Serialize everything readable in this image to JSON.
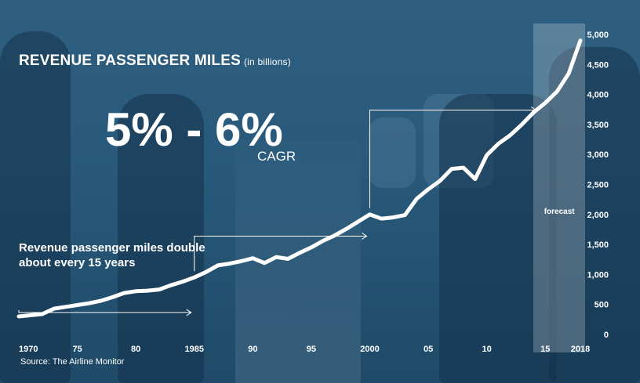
{
  "title": "REVENUE PASSENGER MILES",
  "title_unit": "(in billions)",
  "cagr": {
    "value": "5% - 6%",
    "label": "CAGR"
  },
  "annotation": "Revenue passenger miles double about every 15 years",
  "source": "Source: The Airline Monitor",
  "forecast_label": "forecast",
  "colors": {
    "line": "#ffffff",
    "background": "#2b5a7a",
    "forecast_band": "rgba(255,255,255,0.22)"
  },
  "chart_data": {
    "type": "line",
    "title": "REVENUE PASSENGER MILES (in billions)",
    "x_range": [
      1970,
      2018
    ],
    "y_range": [
      0,
      5000
    ],
    "x_ticks": [
      {
        "value": 1970,
        "label": "1970"
      },
      {
        "value": 1975,
        "label": "75"
      },
      {
        "value": 1980,
        "label": "80"
      },
      {
        "value": 1985,
        "label": "1985"
      },
      {
        "value": 1990,
        "label": "90"
      },
      {
        "value": 1995,
        "label": "95"
      },
      {
        "value": 2000,
        "label": "2000"
      },
      {
        "value": 2005,
        "label": "05"
      },
      {
        "value": 2010,
        "label": "10"
      },
      {
        "value": 2015,
        "label": "15"
      },
      {
        "value": 2018,
        "label": "2018"
      }
    ],
    "y_ticks": [
      {
        "value": 0,
        "label": "0"
      },
      {
        "value": 500,
        "label": "500"
      },
      {
        "value": 1000,
        "label": "1,000"
      },
      {
        "value": 1500,
        "label": "1,500"
      },
      {
        "value": 2000,
        "label": "2,000"
      },
      {
        "value": 2500,
        "label": "2,500"
      },
      {
        "value": 3000,
        "label": "3,000"
      },
      {
        "value": 3500,
        "label": "3,500"
      },
      {
        "value": 4000,
        "label": "4,000"
      },
      {
        "value": 4500,
        "label": "4,500"
      },
      {
        "value": 5000,
        "label": "5,000"
      }
    ],
    "x_axis_position": "bottom",
    "y_axis_position": "right",
    "grid": false,
    "forecast_range": [
      2014.4,
      2018
    ],
    "doubling_markers": [
      1970,
      1985,
      2000
    ],
    "series": [
      {
        "x": [
          1970,
          1971,
          1972,
          1973,
          1974,
          1975,
          1976,
          1977,
          1978,
          1979,
          1980,
          1981,
          1982,
          1983,
          1984,
          1985,
          1986,
          1987,
          1988,
          1989,
          1990,
          1991,
          1992,
          1993,
          1994,
          1995,
          1996,
          1997,
          1998,
          1999,
          2000,
          2001,
          2002,
          2003,
          2004,
          2005,
          2006,
          2007,
          2008,
          2009,
          2010,
          2011,
          2012,
          2013,
          2014,
          2015,
          2016,
          2017,
          2018
        ],
        "y": [
          300,
          320,
          340,
          430,
          460,
          490,
          520,
          560,
          620,
          690,
          720,
          730,
          750,
          820,
          880,
          950,
          1040,
          1150,
          1180,
          1220,
          1270,
          1190,
          1290,
          1260,
          1360,
          1450,
          1560,
          1650,
          1760,
          1880,
          2000,
          1930,
          1950,
          1990,
          2260,
          2420,
          2560,
          2760,
          2780,
          2590,
          2990,
          3180,
          3320,
          3500,
          3700,
          3860,
          4050,
          4350,
          4900
        ]
      }
    ]
  }
}
